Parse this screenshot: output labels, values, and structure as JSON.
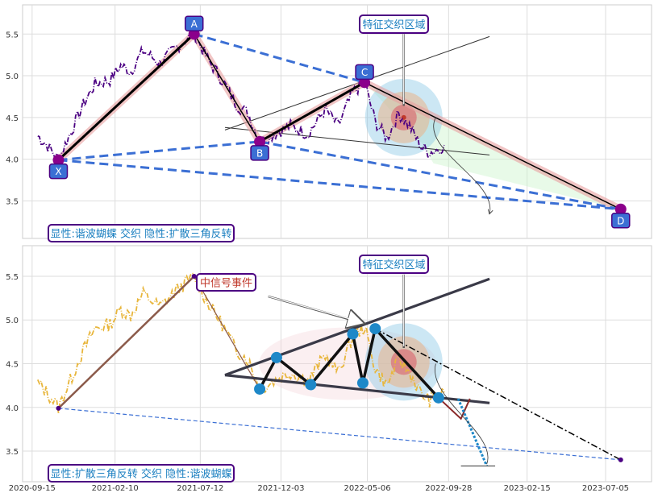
{
  "chart_data": [
    {
      "type": "line",
      "panel": "top",
      "ylim": [
        3.05,
        5.85
      ],
      "yticks": [
        3.5,
        4.0,
        4.5,
        5.0,
        5.5
      ],
      "grid": true,
      "points": [
        {
          "name": "X",
          "date": "2020-11-01",
          "value": 3.99
        },
        {
          "name": "A",
          "date": "2021-07-01",
          "value": 5.5
        },
        {
          "name": "B",
          "date": "2021-10-26",
          "value": 4.21
        },
        {
          "name": "C",
          "date": "2022-05-01",
          "value": 4.92
        },
        {
          "name": "D",
          "date": "2023-08-01",
          "value": 3.4
        }
      ],
      "price_series": [
        {
          "date": "2020-09-25",
          "value": 4.28
        },
        {
          "date": "2020-10-10",
          "value": 4.18
        },
        {
          "date": "2020-11-01",
          "value": 4.0
        },
        {
          "date": "2020-11-25",
          "value": 4.35
        },
        {
          "date": "2020-12-15",
          "value": 4.65
        },
        {
          "date": "2021-01-05",
          "value": 4.9
        },
        {
          "date": "2021-02-01",
          "value": 4.95
        },
        {
          "date": "2021-02-20",
          "value": 5.12
        },
        {
          "date": "2021-03-10",
          "value": 5.05
        },
        {
          "date": "2021-04-01",
          "value": 5.3
        },
        {
          "date": "2021-05-01",
          "value": 5.15
        },
        {
          "date": "2021-06-01",
          "value": 5.35
        },
        {
          "date": "2021-07-01",
          "value": 5.5
        },
        {
          "date": "2021-07-25",
          "value": 5.2
        },
        {
          "date": "2021-08-20",
          "value": 4.95
        },
        {
          "date": "2021-09-15",
          "value": 4.65
        },
        {
          "date": "2021-10-05",
          "value": 4.55
        },
        {
          "date": "2021-10-26",
          "value": 4.21
        },
        {
          "date": "2021-11-20",
          "value": 4.3
        },
        {
          "date": "2021-12-20",
          "value": 4.4
        },
        {
          "date": "2022-01-20",
          "value": 4.3
        },
        {
          "date": "2022-02-20",
          "value": 4.6
        },
        {
          "date": "2022-03-15",
          "value": 4.4
        },
        {
          "date": "2022-04-10",
          "value": 4.8
        },
        {
          "date": "2022-05-01",
          "value": 4.92
        },
        {
          "date": "2022-05-20",
          "value": 4.45
        },
        {
          "date": "2022-06-10",
          "value": 4.25
        },
        {
          "date": "2022-07-01",
          "value": 4.55
        },
        {
          "date": "2022-07-20",
          "value": 4.4
        },
        {
          "date": "2022-08-10",
          "value": 4.15
        },
        {
          "date": "2022-08-25",
          "value": 4.08
        },
        {
          "date": "2022-09-10",
          "value": 4.12
        },
        {
          "date": "2022-09-20",
          "value": 4.17
        }
      ]
    },
    {
      "type": "line",
      "panel": "bottom",
      "ylim": [
        3.15,
        5.85
      ],
      "yticks": [
        3.5,
        4.0,
        4.5,
        5.0,
        5.5
      ],
      "grid": true,
      "points": [
        {
          "date": "2020-11-01",
          "value": 3.99
        },
        {
          "date": "2021-07-01",
          "value": 5.5
        },
        {
          "date": "2021-10-26",
          "value": 4.21
        },
        {
          "date": "2021-11-25",
          "value": 4.57
        },
        {
          "date": "2022-01-25",
          "value": 4.26
        },
        {
          "date": "2022-04-10",
          "value": 4.84
        },
        {
          "date": "2022-04-28",
          "value": 4.28
        },
        {
          "date": "2022-05-20",
          "value": 4.9
        },
        {
          "date": "2022-09-10",
          "value": 4.11
        },
        {
          "date": "2023-08-01",
          "value": 3.4
        }
      ],
      "price_series": [
        {
          "date": "2020-09-25",
          "value": 4.28
        },
        {
          "date": "2020-10-10",
          "value": 4.18
        },
        {
          "date": "2020-11-01",
          "value": 4.0
        },
        {
          "date": "2020-11-25",
          "value": 4.35
        },
        {
          "date": "2020-12-15",
          "value": 4.65
        },
        {
          "date": "2021-01-05",
          "value": 4.9
        },
        {
          "date": "2021-02-01",
          "value": 4.95
        },
        {
          "date": "2021-02-20",
          "value": 5.12
        },
        {
          "date": "2021-03-10",
          "value": 5.05
        },
        {
          "date": "2021-04-01",
          "value": 5.3
        },
        {
          "date": "2021-05-01",
          "value": 5.15
        },
        {
          "date": "2021-06-01",
          "value": 5.35
        },
        {
          "date": "2021-07-01",
          "value": 5.5
        },
        {
          "date": "2021-07-25",
          "value": 5.2
        },
        {
          "date": "2021-08-20",
          "value": 4.95
        },
        {
          "date": "2021-09-15",
          "value": 4.65
        },
        {
          "date": "2021-10-05",
          "value": 4.55
        },
        {
          "date": "2021-10-26",
          "value": 4.21
        },
        {
          "date": "2021-11-20",
          "value": 4.3
        },
        {
          "date": "2021-12-20",
          "value": 4.4
        },
        {
          "date": "2022-01-20",
          "value": 4.3
        },
        {
          "date": "2022-02-20",
          "value": 4.6
        },
        {
          "date": "2022-03-15",
          "value": 4.4
        },
        {
          "date": "2022-04-10",
          "value": 4.8
        },
        {
          "date": "2022-05-01",
          "value": 4.92
        },
        {
          "date": "2022-05-20",
          "value": 4.45
        },
        {
          "date": "2022-06-10",
          "value": 4.25
        },
        {
          "date": "2022-07-01",
          "value": 4.55
        },
        {
          "date": "2022-07-20",
          "value": 4.4
        },
        {
          "date": "2022-08-10",
          "value": 4.15
        },
        {
          "date": "2022-08-25",
          "value": 4.08
        },
        {
          "date": "2022-09-10",
          "value": 4.12
        },
        {
          "date": "2022-09-20",
          "value": 4.17
        }
      ]
    }
  ],
  "xticks": [
    "2020-09-15",
    "2021-02-10",
    "2021-07-12",
    "2021-12-03",
    "2022-05-06",
    "2022-09-28",
    "2023-02-15",
    "2023-07-05"
  ],
  "annotations": {
    "top_feature": "特征交织区域",
    "top_legend": "显性:谐波蝴蝶 交织 隐性:扩散三角反转",
    "bottom_feature": "特征交织区域",
    "bottom_signal": "中信号事件",
    "bottom_legend": "显性:扩散三角反转 交织 隐性:谐波蝴蝶"
  },
  "colors": {
    "price_top": "#4b0082",
    "price_bottom": "#e8b63c",
    "dashed_blue": "#3b6fd4",
    "label_blue": "#1a7fc0",
    "label_red": "#c0392b",
    "box_border": "#4b0082",
    "node_blue": "#1e88c8"
  }
}
